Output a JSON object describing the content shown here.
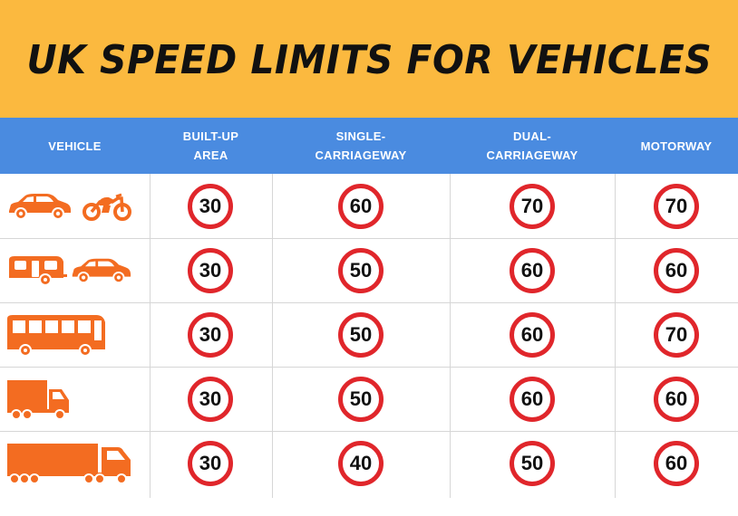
{
  "title": "UK SPEED LIMITS FOR VEHICLES",
  "columns": [
    "VEHICLE",
    "BUILT-UP\nAREA",
    "SINGLE-\nCARRIAGEWAY",
    "DUAL-\nCARRIAGEWAY",
    "MOTORWAY"
  ],
  "colors": {
    "banner": "#fbb93f",
    "header": "#4a8be0",
    "sign_ring": "#e0262b",
    "vehicle": "#f36c21"
  },
  "rows": [
    {
      "vehicle_icons": [
        "car-icon",
        "motorcycle-icon"
      ],
      "limits": [
        "30",
        "60",
        "70",
        "70"
      ]
    },
    {
      "vehicle_icons": [
        "caravan-icon",
        "car-icon"
      ],
      "limits": [
        "30",
        "50",
        "60",
        "60"
      ]
    },
    {
      "vehicle_icons": [
        "bus-icon"
      ],
      "limits": [
        "30",
        "50",
        "60",
        "70"
      ]
    },
    {
      "vehicle_icons": [
        "rigid-truck-icon"
      ],
      "limits": [
        "30",
        "50",
        "60",
        "60"
      ]
    },
    {
      "vehicle_icons": [
        "articulated-lorry-icon"
      ],
      "limits": [
        "30",
        "40",
        "50",
        "60"
      ]
    }
  ]
}
